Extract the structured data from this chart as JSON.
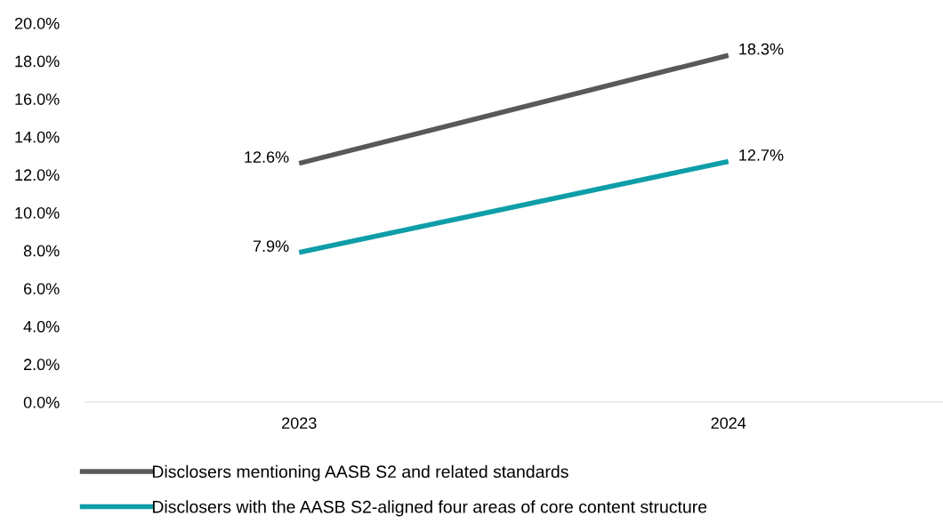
{
  "chart_data": {
    "type": "line",
    "categories": [
      "2023",
      "2024"
    ],
    "series": [
      {
        "name": "Disclosers mentioning AASB S2 and related standards",
        "color": "#595959",
        "values": [
          12.6,
          18.3
        ],
        "value_labels": [
          "12.6%",
          "18.3%"
        ]
      },
      {
        "name": "Disclosers with the AASB S2-aligned four areas of core content structure",
        "color": "#0e9ea8",
        "values": [
          7.9,
          12.7
        ],
        "value_labels": [
          "7.9%",
          "12.7%"
        ]
      }
    ],
    "ylim": [
      0,
      20
    ],
    "yticks": [
      {
        "value": 0,
        "label": "0.0%"
      },
      {
        "value": 2,
        "label": "2.0%"
      },
      {
        "value": 4,
        "label": "4.0%"
      },
      {
        "value": 6,
        "label": "6.0%"
      },
      {
        "value": 8,
        "label": "8.0%"
      },
      {
        "value": 10,
        "label": "10.0%"
      },
      {
        "value": 12,
        "label": "12.0%"
      },
      {
        "value": 14,
        "label": "14.0%"
      },
      {
        "value": 16,
        "label": "16.0%"
      },
      {
        "value": 18,
        "label": "18.0%"
      },
      {
        "value": 20,
        "label": "20.0%"
      }
    ],
    "grid": false,
    "legend": "bottom",
    "marker": "none",
    "line_style": "solid"
  }
}
